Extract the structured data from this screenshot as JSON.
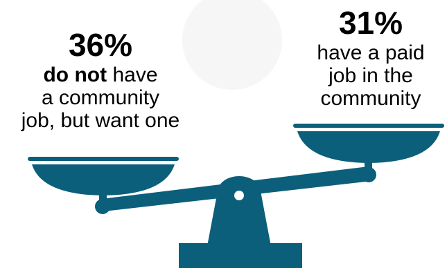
{
  "colors": {
    "scale": "#0c5f7a",
    "text": "#000000",
    "faint_circle": "#f6f6f6"
  },
  "left_stat": {
    "percent": "36%",
    "emphasis": "do not",
    "line1_rest": " have",
    "line2": "a community",
    "line3": "job, but want one"
  },
  "right_stat": {
    "percent": "31%",
    "line1": "have a paid",
    "line2": "job in the",
    "line3": "community"
  },
  "graphic": {
    "icon": "balance-scale-icon"
  }
}
